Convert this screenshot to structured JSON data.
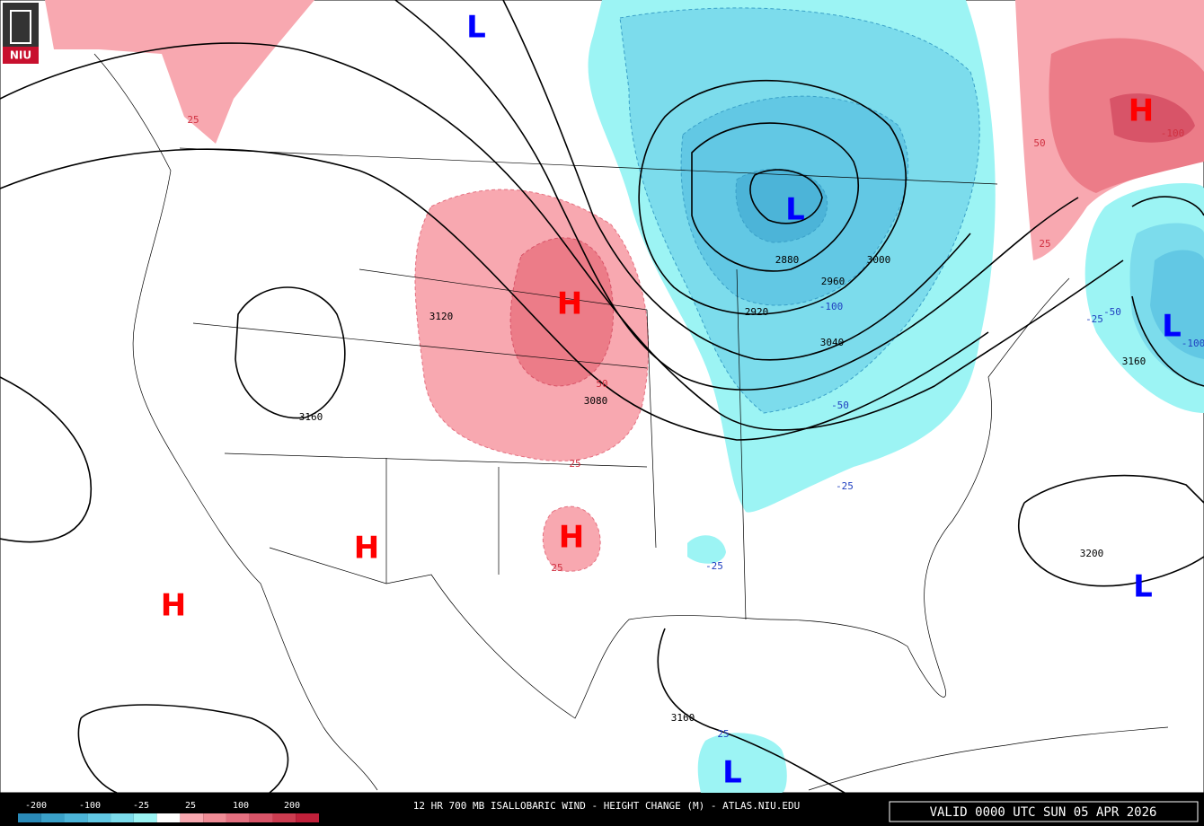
{
  "header": {
    "logo": "NIU"
  },
  "map": {
    "highs": [
      "H",
      "H",
      "H",
      "H",
      "H"
    ],
    "lows": [
      "L",
      "L",
      "L",
      "L",
      "L"
    ],
    "height_contours": [
      "3160",
      "3120",
      "3080",
      "3040",
      "3000",
      "2960",
      "2920",
      "2880",
      "3160",
      "3200",
      "3160"
    ],
    "change_labels": [
      "25",
      "25",
      "50",
      "25",
      "25",
      "50",
      "-100",
      "-25",
      "-25",
      "-50",
      "-100",
      "-25",
      "-50",
      "-100",
      "25"
    ]
  },
  "legend": {
    "ticks": [
      -200,
      -100,
      -25,
      25,
      100,
      200
    ],
    "colors": [
      "#2a8ab8",
      "#3aa0c8",
      "#4cb4d8",
      "#62c8e4",
      "#7cdcec",
      "#9cf4f4",
      "#ffffff",
      "#f8a8b0",
      "#f08c96",
      "#e47080",
      "#d85468",
      "#cc3c50",
      "#c0203a"
    ]
  },
  "footer": {
    "title": "12 HR 700 MB ISALLOBARIC WIND - HEIGHT CHANGE (M) - ATLAS.NIU.EDU",
    "valid": "VALID 0000 UTC SUN 05 APR 2026"
  }
}
